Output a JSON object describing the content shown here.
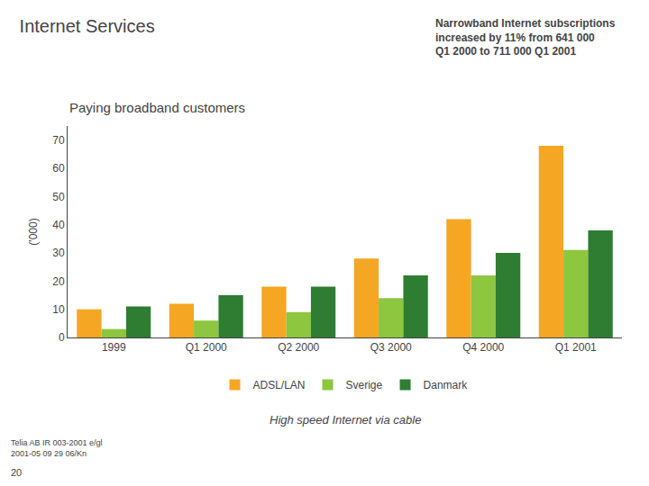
{
  "chart_data": {
    "type": "bar",
    "title": "Internet Services",
    "subtitle": "Paying broadband customers",
    "ylabel": "('000)",
    "categories": [
      "1999",
      "Q1 2000",
      "Q2 2000",
      "Q3 2000",
      "Q4 2000",
      "Q1 2001"
    ],
    "series": [
      {
        "name": "ADSL/LAN",
        "color": "#F5A623",
        "values": [
          10,
          12,
          18,
          28,
          42,
          68
        ]
      },
      {
        "name": "Sverige",
        "color": "#8DC63F",
        "values": [
          3,
          6,
          9,
          14,
          22,
          31
        ]
      },
      {
        "name": "Danmark",
        "color": "#2E7D32",
        "values": [
          11,
          15,
          18,
          22,
          30,
          38
        ]
      }
    ],
    "ylim": [
      0,
      75
    ],
    "yticks": [
      0,
      10,
      20,
      30,
      40,
      50,
      60,
      70
    ],
    "grid": false,
    "legend": "bottom",
    "annotations": [
      "Narrowband Internet subscriptions\nincreased by 11% from 641 000\nQ1 2000 to 711 000 Q1 2001",
      "High speed Internet via cable",
      "Telia AB IR 003-2001 e/gl\n2001-05 09 29 06/Kn",
      "20"
    ]
  }
}
